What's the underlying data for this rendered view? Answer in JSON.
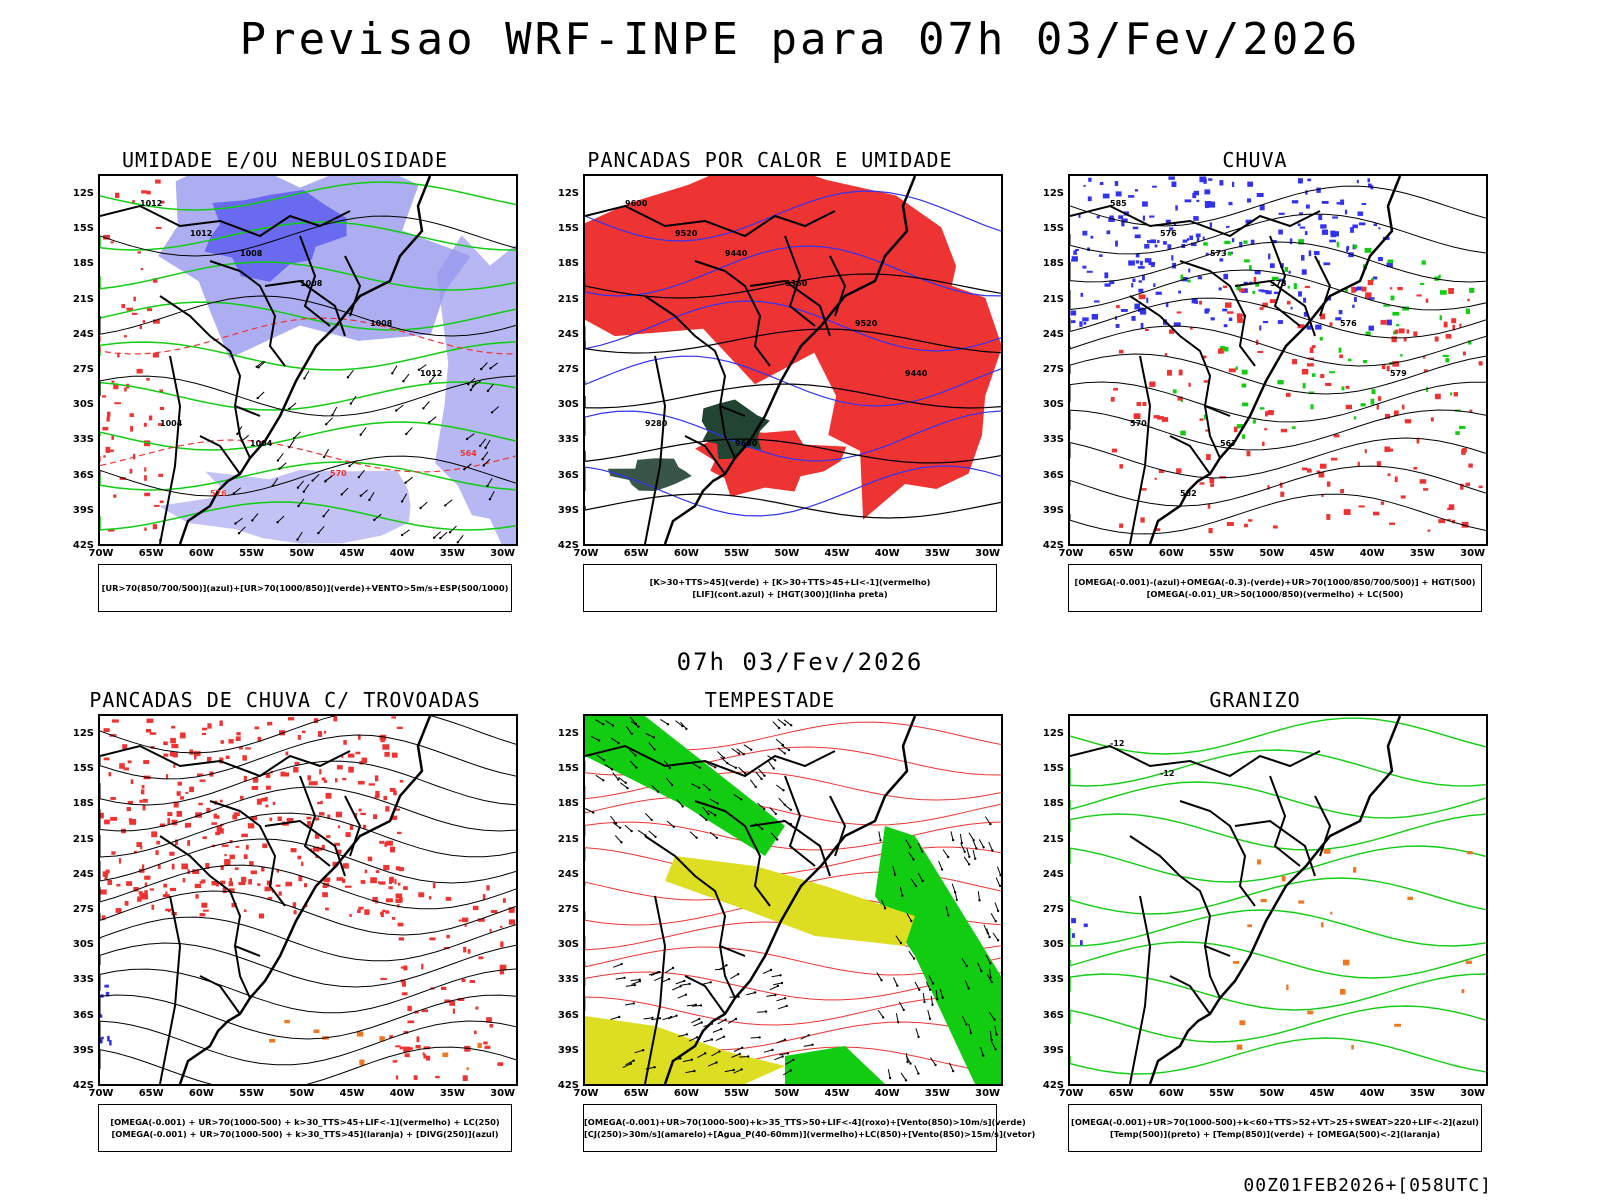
{
  "header": {
    "title": "Previsao WRF-INPE  para 07h 03/Fev/2026"
  },
  "middle_label": "07h 03/Fev/2026",
  "footer": "00Z01FEB2026+[058UTC]",
  "axes": {
    "lat_labels": [
      "12S",
      "15S",
      "18S",
      "21S",
      "24S",
      "27S",
      "30S",
      "33S",
      "36S",
      "39S",
      "42S"
    ],
    "lon_labels": [
      "70W",
      "65W",
      "60W",
      "55W",
      "50W",
      "45W",
      "40W",
      "35W",
      "30W"
    ]
  },
  "colors": {
    "blue": "#3333ee",
    "lavender": "#9999ee",
    "green": "#11cc11",
    "red": "#ee3333",
    "orange": "#ee7722",
    "yellow": "#dddd22",
    "darkgreen": "#224433",
    "black": "#000000"
  },
  "panels": [
    {
      "id": "umidade",
      "title": "UMIDADE E/OU NEBULOSIDADE",
      "legend": [
        "[UR>70(850/700/500)](azul)+[UR>70(1000/850)](verde)+VENTO>5m/s+ESP(500/1000)"
      ],
      "contour_labels": [
        "1012",
        "1012",
        "1008",
        "1008",
        "1004",
        "1004",
        "1008",
        "1012",
        "576",
        "570",
        "564"
      ]
    },
    {
      "id": "pancadas_calor",
      "title": "PANCADAS POR CALOR E UMIDADE",
      "legend": [
        "[K>30+TTS>45](verde) + [K>30+TTS>45+LI<-1](vermelho)",
        "[LIF](cont.azul) + [HGT(300)](linha preta)"
      ],
      "contour_labels": [
        "9600",
        "9520",
        "9440",
        "9360",
        "9280",
        "9600",
        "9520",
        "9440"
      ]
    },
    {
      "id": "chuva",
      "title": "CHUVA",
      "legend": [
        "[OMEGA(-0.001)-(azul)+OMEGA(-0.3)-(verde)+UR>70(1000/850/700/500)] + HGT(500)",
        "[OMEGA(-0.01)_UR>50(1000/850)(vermelho) + LC(500)"
      ],
      "contour_labels": [
        "585",
        "576",
        "573",
        "573",
        "570",
        "567",
        "576",
        "579",
        "582"
      ]
    },
    {
      "id": "trovoadas",
      "title": "PANCADAS DE CHUVA C/ TROVOADAS",
      "legend": [
        "[OMEGA(-0.001) + UR>70(1000-500) + k>30_TTS>45+LIF<-1](vermelho) + LC(250)",
        "[OMEGA(-0.001) + UR>70(1000-500) + k>30_TTS>45](laranja) + [DIVG(250)](azul)"
      ],
      "contour_labels": []
    },
    {
      "id": "tempestade",
      "title": "TEMPESTADE",
      "legend": [
        "[OMEGA(-0.001)+UR>70(1000-500)+k>35_TTS>50+LIF<-4](roxo)+[Vento(850)>10m/s](verde)",
        "[CJ(250)>30m/s](amarelo)+[Agua_P(40-60mm)](vermelho)+LC(850)+[Vento(850)>15m/s](vetor)"
      ],
      "contour_labels": []
    },
    {
      "id": "granizo",
      "title": "GRANIZO",
      "legend": [
        "[OMEGA(-0.001)+UR>70(1000-500)+k<60+TTS>52+VT>25+SWEAT>220+LIF<-2](azul)",
        "[Temp(500)](preto) + [Temp(850)](verde) + [OMEGA(500)<-2](laranja)"
      ],
      "contour_labels": [
        "-12",
        "-12"
      ]
    }
  ]
}
